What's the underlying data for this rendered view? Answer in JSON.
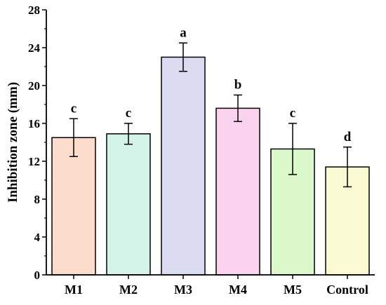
{
  "chart_data": {
    "type": "bar",
    "title": "",
    "xlabel": "",
    "ylabel": "Inhibition zone (mm)",
    "ylim": [
      0,
      28
    ],
    "yticks": [
      0,
      4,
      8,
      12,
      16,
      20,
      24,
      28
    ],
    "grid": false,
    "categories": [
      "M1",
      "M2",
      "M3",
      "M4",
      "M5",
      "Control"
    ],
    "values": [
      14.5,
      14.9,
      23.0,
      17.6,
      13.3,
      11.4
    ],
    "errors": [
      2.0,
      1.1,
      1.5,
      1.4,
      2.7,
      2.1
    ],
    "significance": [
      "c",
      "c",
      "a",
      "b",
      "c",
      "d"
    ],
    "colors": [
      "#fcdcca",
      "#d4f3e8",
      "#dbdcf2",
      "#fcd3ef",
      "#dbf8ca",
      "#fafbd3"
    ]
  }
}
